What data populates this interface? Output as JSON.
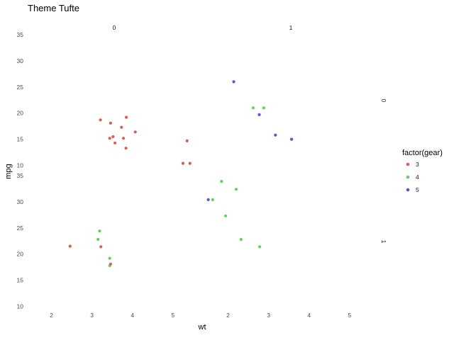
{
  "chart_data": {
    "type": "scatter",
    "title": "Theme Tufte",
    "xlabel": "wt",
    "ylabel": "mpg",
    "xlim": [
      1.5,
      5.6
    ],
    "ylim": [
      9.4,
      35.4
    ],
    "x_ticks": [
      "2",
      "3",
      "4",
      "5"
    ],
    "y_ticks": [
      "10",
      "15",
      "20",
      "25",
      "30",
      "35"
    ],
    "x_tick_values": [
      2,
      3,
      4,
      5
    ],
    "y_tick_values": [
      10,
      15,
      20,
      25,
      30,
      35
    ],
    "facet_cols": [
      "0",
      "1"
    ],
    "facet_rows": [
      "0",
      "1"
    ],
    "grid": false,
    "legend": {
      "title": "factor(gear)",
      "position": "right",
      "entries": [
        {
          "label": "3",
          "color": "#e35a4f"
        },
        {
          "label": "4",
          "color": "#5fd35a"
        },
        {
          "label": "5",
          "color": "#5b52d6"
        }
      ]
    },
    "panels": [
      {
        "row": 0,
        "col": 0,
        "points": [
          {
            "x": 3.21,
            "y": 18.7,
            "gear": "3"
          },
          {
            "x": 3.46,
            "y": 18.1,
            "gear": "3"
          },
          {
            "x": 3.57,
            "y": 14.3,
            "gear": "3"
          },
          {
            "x": 4.07,
            "y": 16.4,
            "gear": "3"
          },
          {
            "x": 3.73,
            "y": 17.3,
            "gear": "3"
          },
          {
            "x": 3.78,
            "y": 15.2,
            "gear": "3"
          },
          {
            "x": 5.25,
            "y": 10.4,
            "gear": "3"
          },
          {
            "x": 5.42,
            "y": 10.4,
            "gear": "3"
          },
          {
            "x": 5.35,
            "y": 14.7,
            "gear": "3"
          },
          {
            "x": 3.52,
            "y": 15.5,
            "gear": "3"
          },
          {
            "x": 3.44,
            "y": 15.2,
            "gear": "3"
          },
          {
            "x": 3.84,
            "y": 13.3,
            "gear": "3"
          },
          {
            "x": 3.85,
            "y": 19.2,
            "gear": "3"
          }
        ]
      },
      {
        "row": 0,
        "col": 1,
        "points": [
          {
            "x": 2.62,
            "y": 21.0,
            "gear": "4"
          },
          {
            "x": 2.88,
            "y": 21.0,
            "gear": "4"
          },
          {
            "x": 2.14,
            "y": 26.0,
            "gear": "5"
          },
          {
            "x": 3.17,
            "y": 15.8,
            "gear": "5"
          },
          {
            "x": 2.77,
            "y": 19.7,
            "gear": "5"
          },
          {
            "x": 3.57,
            "y": 15.0,
            "gear": "5"
          }
        ]
      },
      {
        "row": 1,
        "col": 0,
        "points": [
          {
            "x": 2.46,
            "y": 21.5,
            "gear": "3"
          },
          {
            "x": 3.22,
            "y": 21.4,
            "gear": "3"
          },
          {
            "x": 3.19,
            "y": 24.4,
            "gear": "4"
          },
          {
            "x": 3.15,
            "y": 22.8,
            "gear": "4"
          },
          {
            "x": 3.44,
            "y": 19.2,
            "gear": "4"
          },
          {
            "x": 3.44,
            "y": 17.8,
            "gear": "4"
          },
          {
            "x": 3.46,
            "y": 18.1,
            "gear": "3"
          }
        ]
      },
      {
        "row": 1,
        "col": 1,
        "points": [
          {
            "x": 2.32,
            "y": 22.8,
            "gear": "4"
          },
          {
            "x": 2.2,
            "y": 32.4,
            "gear": "4"
          },
          {
            "x": 1.62,
            "y": 30.4,
            "gear": "4"
          },
          {
            "x": 1.84,
            "y": 33.9,
            "gear": "4"
          },
          {
            "x": 1.94,
            "y": 27.3,
            "gear": "4"
          },
          {
            "x": 2.78,
            "y": 21.4,
            "gear": "4"
          },
          {
            "x": 1.51,
            "y": 30.4,
            "gear": "5"
          }
        ]
      }
    ]
  }
}
